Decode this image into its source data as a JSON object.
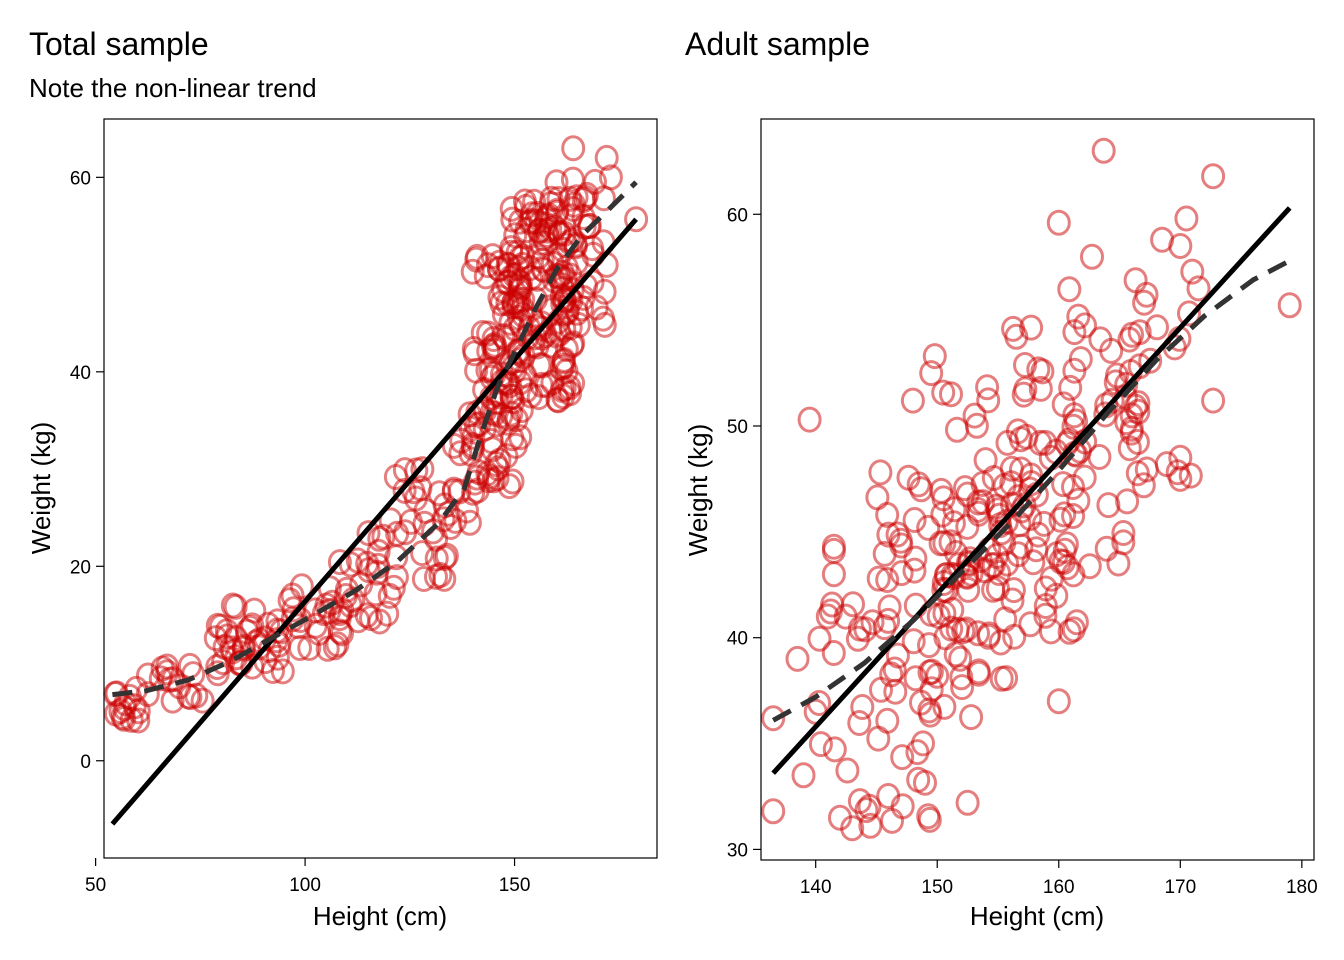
{
  "colors": {
    "point": "#CC0000",
    "linear_fit": "#000000",
    "smooth_fit": "#333333",
    "background": "#ffffff"
  },
  "chart_data": [
    {
      "type": "scatter",
      "title": "Total sample",
      "subtitle": "Note the non-linear trend",
      "xlabel": "Height (cm)",
      "ylabel": "Weight (kg)",
      "xlim": [
        52,
        184
      ],
      "ylim": [
        -10,
        66
      ],
      "xticks": [
        50,
        100,
        150
      ],
      "yticks": [
        0,
        20,
        40,
        60
      ],
      "grid": false,
      "marker": "O",
      "point_alpha": 0.5,
      "seed": 11,
      "point_groups": [
        {
          "n": 14,
          "x": [
            54,
            62
          ],
          "y": [
            4,
            8
          ]
        },
        {
          "n": 16,
          "x": [
            62,
            76
          ],
          "y": [
            6,
            10
          ]
        },
        {
          "n": 40,
          "x": [
            78,
            95
          ],
          "y": [
            9,
            16
          ]
        },
        {
          "n": 20,
          "x": [
            95,
            110
          ],
          "y": [
            11,
            18
          ]
        },
        {
          "n": 30,
          "x": [
            108,
            122
          ],
          "y": [
            13,
            24
          ]
        },
        {
          "n": 25,
          "x": [
            120,
            134
          ],
          "y": [
            18,
            30
          ]
        },
        {
          "n": 20,
          "x": [
            134,
            142
          ],
          "y": [
            24,
            36
          ]
        },
        {
          "n": 90,
          "x": [
            140,
            152
          ],
          "y": [
            28,
            52
          ]
        },
        {
          "n": 130,
          "x": [
            148,
            164
          ],
          "y": [
            36,
            58
          ]
        },
        {
          "n": 40,
          "x": [
            160,
            172
          ],
          "y": [
            44,
            60
          ]
        }
      ],
      "fixed_points": [
        {
          "x": 164,
          "y": 63
        },
        {
          "x": 172,
          "y": 62
        },
        {
          "x": 173,
          "y": 60
        },
        {
          "x": 160,
          "y": 59.5
        },
        {
          "x": 179,
          "y": 55.7
        },
        {
          "x": 172,
          "y": 51
        },
        {
          "x": 140,
          "y": 50.3
        },
        {
          "x": 101,
          "y": 11.6
        },
        {
          "x": 97,
          "y": 17
        },
        {
          "x": 128,
          "y": 30
        },
        {
          "x": 143,
          "y": 36
        }
      ],
      "lines": [
        {
          "name": "",
          "style": "solid",
          "points": [
            [
              54,
              -6.5
            ],
            [
              179,
              55.7
            ]
          ]
        },
        {
          "name": "",
          "style": "dashed",
          "points": [
            [
              54,
              6.8
            ],
            [
              62,
              7.2
            ],
            [
              72,
              8.3
            ],
            [
              82,
              10.2
            ],
            [
              92,
              12.6
            ],
            [
              102,
              15.0
            ],
            [
              112,
              17.5
            ],
            [
              122,
              20.5
            ],
            [
              132,
              24.5
            ],
            [
              138,
              28
            ],
            [
              142,
              33.5
            ],
            [
              146,
              38.5
            ],
            [
              150,
              42
            ],
            [
              155,
              46.5
            ],
            [
              160,
              50.5
            ],
            [
              166,
              54
            ],
            [
              172,
              56.5
            ],
            [
              179,
              59.5
            ]
          ]
        }
      ]
    },
    {
      "type": "scatter",
      "title": "Adult sample",
      "subtitle": "",
      "xlabel": "Height (cm)",
      "ylabel": "Weight (kg)",
      "xlim": [
        135.5,
        181
      ],
      "ylim": [
        29.5,
        64.5
      ],
      "xticks": [
        140,
        150,
        160,
        170,
        180
      ],
      "yticks": [
        30,
        40,
        50,
        60
      ],
      "grid": false,
      "marker": "O",
      "point_alpha": 0.5,
      "seed": 29,
      "point_groups": [
        {
          "n": 40,
          "x": [
            140,
            150
          ],
          "y": [
            31,
            42
          ]
        },
        {
          "n": 70,
          "x": [
            145,
            156
          ],
          "y": [
            36,
            48
          ]
        },
        {
          "n": 80,
          "x": [
            150,
            162
          ],
          "y": [
            40,
            52
          ]
        },
        {
          "n": 60,
          "x": [
            155,
            167
          ],
          "y": [
            43,
            55
          ]
        },
        {
          "n": 25,
          "x": [
            160,
            172
          ],
          "y": [
            47,
            58
          ]
        }
      ],
      "fixed_points": [
        {
          "x": 136.5,
          "y": 36.2
        },
        {
          "x": 136.5,
          "y": 31.8
        },
        {
          "x": 139,
          "y": 33.5
        },
        {
          "x": 138.5,
          "y": 39
        },
        {
          "x": 140,
          "y": 36.5
        },
        {
          "x": 141,
          "y": 41
        },
        {
          "x": 139.5,
          "y": 50.3
        },
        {
          "x": 143,
          "y": 31
        },
        {
          "x": 142,
          "y": 31.5
        },
        {
          "x": 152.5,
          "y": 32.2
        },
        {
          "x": 160,
          "y": 37
        },
        {
          "x": 163.7,
          "y": 63
        },
        {
          "x": 172.7,
          "y": 61.8
        },
        {
          "x": 160,
          "y": 59.6
        },
        {
          "x": 179,
          "y": 55.7
        },
        {
          "x": 172.7,
          "y": 51.2
        },
        {
          "x": 170,
          "y": 58.5
        },
        {
          "x": 170.5,
          "y": 59.8
        },
        {
          "x": 168.5,
          "y": 58.8
        },
        {
          "x": 171.5,
          "y": 56.5
        },
        {
          "x": 149.8,
          "y": 53.3
        },
        {
          "x": 149.5,
          "y": 52.5
        },
        {
          "x": 148,
          "y": 51.2
        },
        {
          "x": 166,
          "y": 50.5
        },
        {
          "x": 170,
          "y": 48.5
        },
        {
          "x": 170,
          "y": 47.5
        },
        {
          "x": 167,
          "y": 47.2
        },
        {
          "x": 141.5,
          "y": 44.3
        },
        {
          "x": 141.5,
          "y": 44.1
        },
        {
          "x": 141.5,
          "y": 43
        },
        {
          "x": 146.5,
          "y": 38.5
        },
        {
          "x": 150,
          "y": 38.2
        }
      ],
      "lines": [
        {
          "name": "",
          "style": "solid",
          "points": [
            [
              136.5,
              33.6
            ],
            [
              179,
              60.3
            ]
          ]
        },
        {
          "name": "",
          "style": "dashed",
          "points": [
            [
              136.5,
              36.1
            ],
            [
              140,
              37.2
            ],
            [
              144,
              38.8
            ],
            [
              148,
              40.8
            ],
            [
              152,
              43.1
            ],
            [
              156,
              45.4
            ],
            [
              160,
              47.9
            ],
            [
              164,
              50.6
            ],
            [
              168,
              53.1
            ],
            [
              172,
              55.2
            ],
            [
              176,
              56.9
            ],
            [
              179,
              57.8
            ]
          ]
        }
      ]
    }
  ]
}
